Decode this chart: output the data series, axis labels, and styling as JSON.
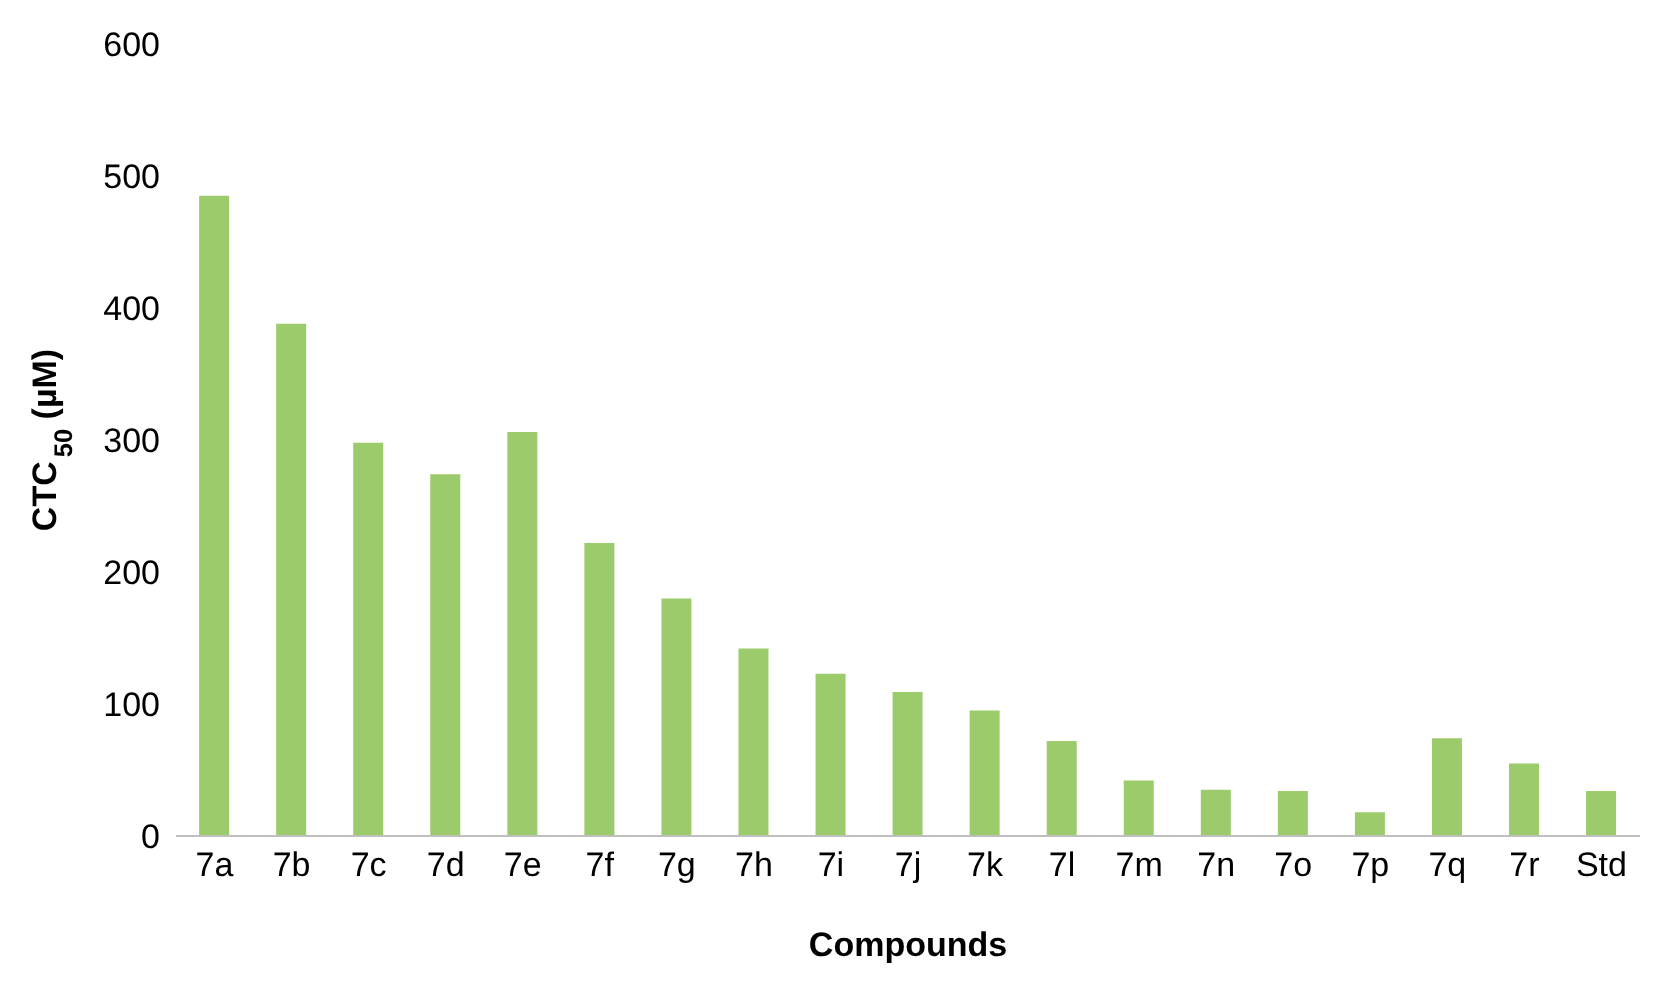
{
  "chart_data": {
    "type": "bar",
    "xlabel": "Compounds",
    "ylabel": "CTC$_{50}$ (µM)",
    "categories": [
      "7a",
      "7b",
      "7c",
      "7d",
      "7e",
      "7f",
      "7g",
      "7h",
      "7i",
      "7j",
      "7k",
      "7l",
      "7m",
      "7n",
      "7o",
      "7p",
      "7q",
      "7r",
      "Std"
    ],
    "values": [
      485,
      388,
      298,
      274,
      306,
      222,
      180,
      142,
      123,
      109,
      95,
      72,
      42,
      35,
      34,
      18,
      74,
      55,
      34
    ],
    "color": "#9bcb6b",
    "ylim": [
      0,
      600
    ],
    "yticks": [
      0,
      100,
      200,
      300,
      400,
      500,
      600
    ],
    "grid": false,
    "legend": false
  }
}
